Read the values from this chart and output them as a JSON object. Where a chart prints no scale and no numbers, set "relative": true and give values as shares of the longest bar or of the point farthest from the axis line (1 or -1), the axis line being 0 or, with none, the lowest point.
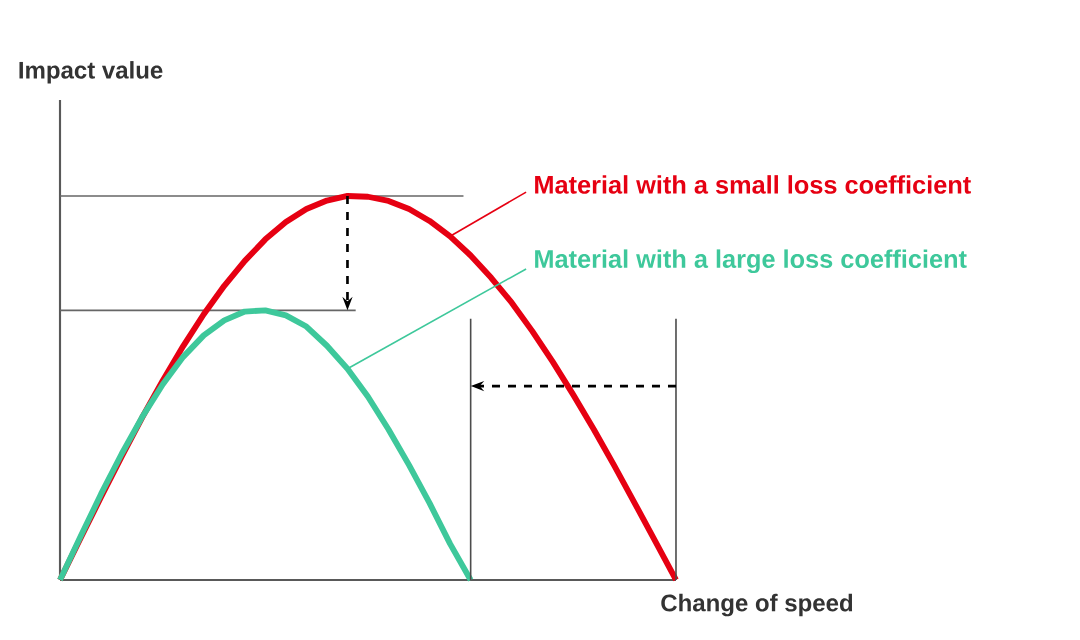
{
  "chart_data": {
    "type": "line",
    "xlabel": "Change of speed",
    "ylabel": "Impact value",
    "relative": true,
    "categories": [
      null,
      null,
      null,
      null,
      null,
      null,
      null,
      null,
      null,
      null,
      null,
      null,
      null,
      null,
      null,
      null,
      null,
      null,
      null,
      null,
      null,
      null,
      null,
      null,
      null,
      null,
      null,
      null,
      null,
      null,
      null
    ],
    "series": [
      {
        "name": "Material with a small loss coefficient",
        "color": "#e60012",
        "values": [
          0,
          0.109,
          0.216,
          0.321,
          0.423,
          0.519,
          0.609,
          0.692,
          0.766,
          0.831,
          0.887,
          0.932,
          0.966,
          0.988,
          1,
          0.998,
          0.987,
          0.966,
          0.935,
          0.895,
          0.845,
          0.787,
          0.722,
          0.648,
          0.568,
          0.482,
          0.392,
          0.297,
          0.199,
          0.1,
          0
        ]
      },
      {
        "name": "Material with a large loss coefficient",
        "color": "#3ec89b",
        "values": [
          0,
          0.113,
          0.224,
          0.328,
          0.424,
          0.509,
          0.581,
          0.637,
          0.676,
          0.699,
          0.702,
          0.689,
          0.66,
          0.61,
          0.55,
          0.477,
          0.392,
          0.299,
          0.2,
          0.094,
          0,
          null,
          null,
          null,
          null,
          null,
          null,
          null,
          null,
          null,
          null
        ]
      }
    ],
    "ref_lines": [
      {
        "axis": "y",
        "value": 1
      },
      {
        "axis": "y",
        "value": 0.702
      }
    ]
  }
}
